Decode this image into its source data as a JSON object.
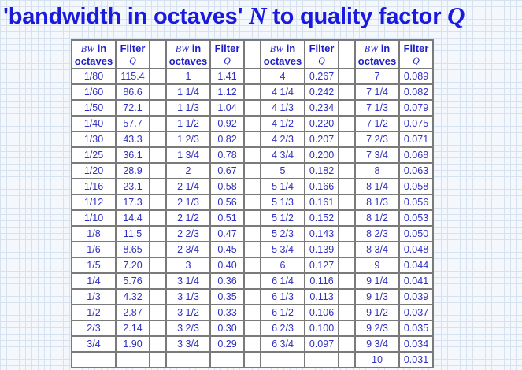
{
  "title": {
    "pre": "'bandwidth in octaves' ",
    "n": "N",
    "mid": " to quality factor ",
    "q": "Q"
  },
  "header": {
    "bw_sym": "BW",
    "bw_in": " in",
    "octaves": "octaves",
    "filter": "Filter",
    "q": "Q"
  },
  "colors": {
    "title": "#1a1adf",
    "text": "#3030c0",
    "border": "#7a7a7a"
  },
  "groups": [
    {
      "rows": [
        [
          "1/80",
          "115.4"
        ],
        [
          "1/60",
          "86.6"
        ],
        [
          "1/50",
          "72.1"
        ],
        [
          "1/40",
          "57.7"
        ],
        [
          "1/30",
          "43.3"
        ],
        [
          "1/25",
          "36.1"
        ],
        [
          "1/20",
          "28.9"
        ],
        [
          "1/16",
          "23.1"
        ],
        [
          "1/12",
          "17.3"
        ],
        [
          "1/10",
          "14.4"
        ],
        [
          "1/8",
          "11.5"
        ],
        [
          "1/6",
          "8.65"
        ],
        [
          "1/5",
          "7.20"
        ],
        [
          "1/4",
          "5.76"
        ],
        [
          "1/3",
          "4.32"
        ],
        [
          "1/2",
          "2.87"
        ],
        [
          "2/3",
          "2.14"
        ],
        [
          "3/4",
          "1.90"
        ],
        [
          "",
          ""
        ]
      ]
    },
    {
      "rows": [
        [
          "1",
          "1.41"
        ],
        [
          "1 1/4",
          "1.12"
        ],
        [
          "1 1/3",
          "1.04"
        ],
        [
          "1 1/2",
          "0.92"
        ],
        [
          "1 2/3",
          "0.82"
        ],
        [
          "1 3/4",
          "0.78"
        ],
        [
          "2",
          "0.67"
        ],
        [
          "2 1/4",
          "0.58"
        ],
        [
          "2 1/3",
          "0.56"
        ],
        [
          "2 1/2",
          "0.51"
        ],
        [
          "2 2/3",
          "0.47"
        ],
        [
          "2 3/4",
          "0.45"
        ],
        [
          "3",
          "0.40"
        ],
        [
          "3 1/4",
          "0.36"
        ],
        [
          "3 1/3",
          "0.35"
        ],
        [
          "3 1/2",
          "0.33"
        ],
        [
          "3 2/3",
          "0.30"
        ],
        [
          "3 3/4",
          "0.29"
        ],
        [
          "",
          ""
        ]
      ]
    },
    {
      "rows": [
        [
          "4",
          "0.267"
        ],
        [
          "4 1/4",
          "0.242"
        ],
        [
          "4 1/3",
          "0.234"
        ],
        [
          "4 1/2",
          "0.220"
        ],
        [
          "4 2/3",
          "0.207"
        ],
        [
          "4 3/4",
          "0.200"
        ],
        [
          "5",
          "0.182"
        ],
        [
          "5 1/4",
          "0.166"
        ],
        [
          "5 1/3",
          "0.161"
        ],
        [
          "5 1/2",
          "0.152"
        ],
        [
          "5 2/3",
          "0.143"
        ],
        [
          "5 3/4",
          "0.139"
        ],
        [
          "6",
          "0.127"
        ],
        [
          "6 1/4",
          "0.116"
        ],
        [
          "6 1/3",
          "0.113"
        ],
        [
          "6 1/2",
          "0.106"
        ],
        [
          "6 2/3",
          "0.100"
        ],
        [
          "6 3/4",
          "0.097"
        ],
        [
          "",
          ""
        ]
      ]
    },
    {
      "rows": [
        [
          "7",
          "0.089"
        ],
        [
          "7 1/4",
          "0.082"
        ],
        [
          "7 1/3",
          "0.079"
        ],
        [
          "7 1/2",
          "0.075"
        ],
        [
          "7 2/3",
          "0.071"
        ],
        [
          "7 3/4",
          "0.068"
        ],
        [
          "8",
          "0.063"
        ],
        [
          "8 1/4",
          "0.058"
        ],
        [
          "8 1/3",
          "0.056"
        ],
        [
          "8 1/2",
          "0.053"
        ],
        [
          "8 2/3",
          "0.050"
        ],
        [
          "8 3/4",
          "0.048"
        ],
        [
          "9",
          "0.044"
        ],
        [
          "9 1/4",
          "0.041"
        ],
        [
          "9 1/3",
          "0.039"
        ],
        [
          "9 1/2",
          "0.037"
        ],
        [
          "9 2/3",
          "0.035"
        ],
        [
          "9 3/4",
          "0.034"
        ],
        [
          "10",
          "0.031"
        ]
      ]
    }
  ]
}
